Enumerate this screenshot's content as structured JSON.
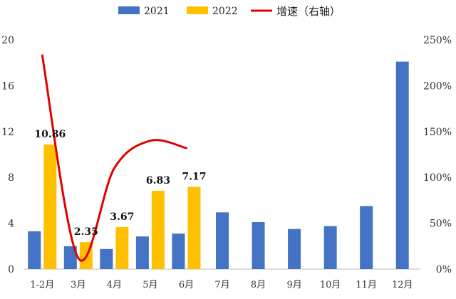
{
  "chart_data": {
    "type": "bar",
    "title": "",
    "xlabel": "",
    "ylabel": "",
    "categories": [
      "1-2月",
      "3月",
      "4月",
      "5月",
      "6月",
      "7月",
      "8月",
      "9月",
      "10月",
      "11月",
      "12月"
    ],
    "series": [
      {
        "name": "2021",
        "kind": "bar",
        "axis": "left",
        "color": "#4472C4",
        "values": [
          3.3,
          2.0,
          1.75,
          2.85,
          3.1,
          4.95,
          4.1,
          3.5,
          3.75,
          5.5,
          18.1
        ]
      },
      {
        "name": "2022",
        "kind": "bar",
        "axis": "left",
        "color": "#FFC000",
        "values": [
          10.86,
          2.35,
          3.67,
          6.83,
          7.17,
          null,
          null,
          null,
          null,
          null,
          null
        ],
        "data_labels": [
          "10.86",
          "2.35",
          "3.67",
          "6.83",
          "7.17"
        ]
      },
      {
        "name": "增速（右轴）",
        "kind": "line",
        "axis": "right",
        "color": "#E00000",
        "smooth": true,
        "values": [
          233,
          12,
          110,
          140,
          132,
          null,
          null,
          null,
          null,
          null,
          null
        ]
      }
    ],
    "ylim": [
      0,
      20
    ],
    "y_ticks": [
      "0",
      "4",
      "8",
      "12",
      "16",
      "20"
    ],
    "y2lim": [
      0,
      250
    ],
    "y2_ticks": [
      "0%",
      "50%",
      "100%",
      "150%",
      "200%",
      "250%"
    ],
    "grid": false,
    "legend_position": "top"
  }
}
